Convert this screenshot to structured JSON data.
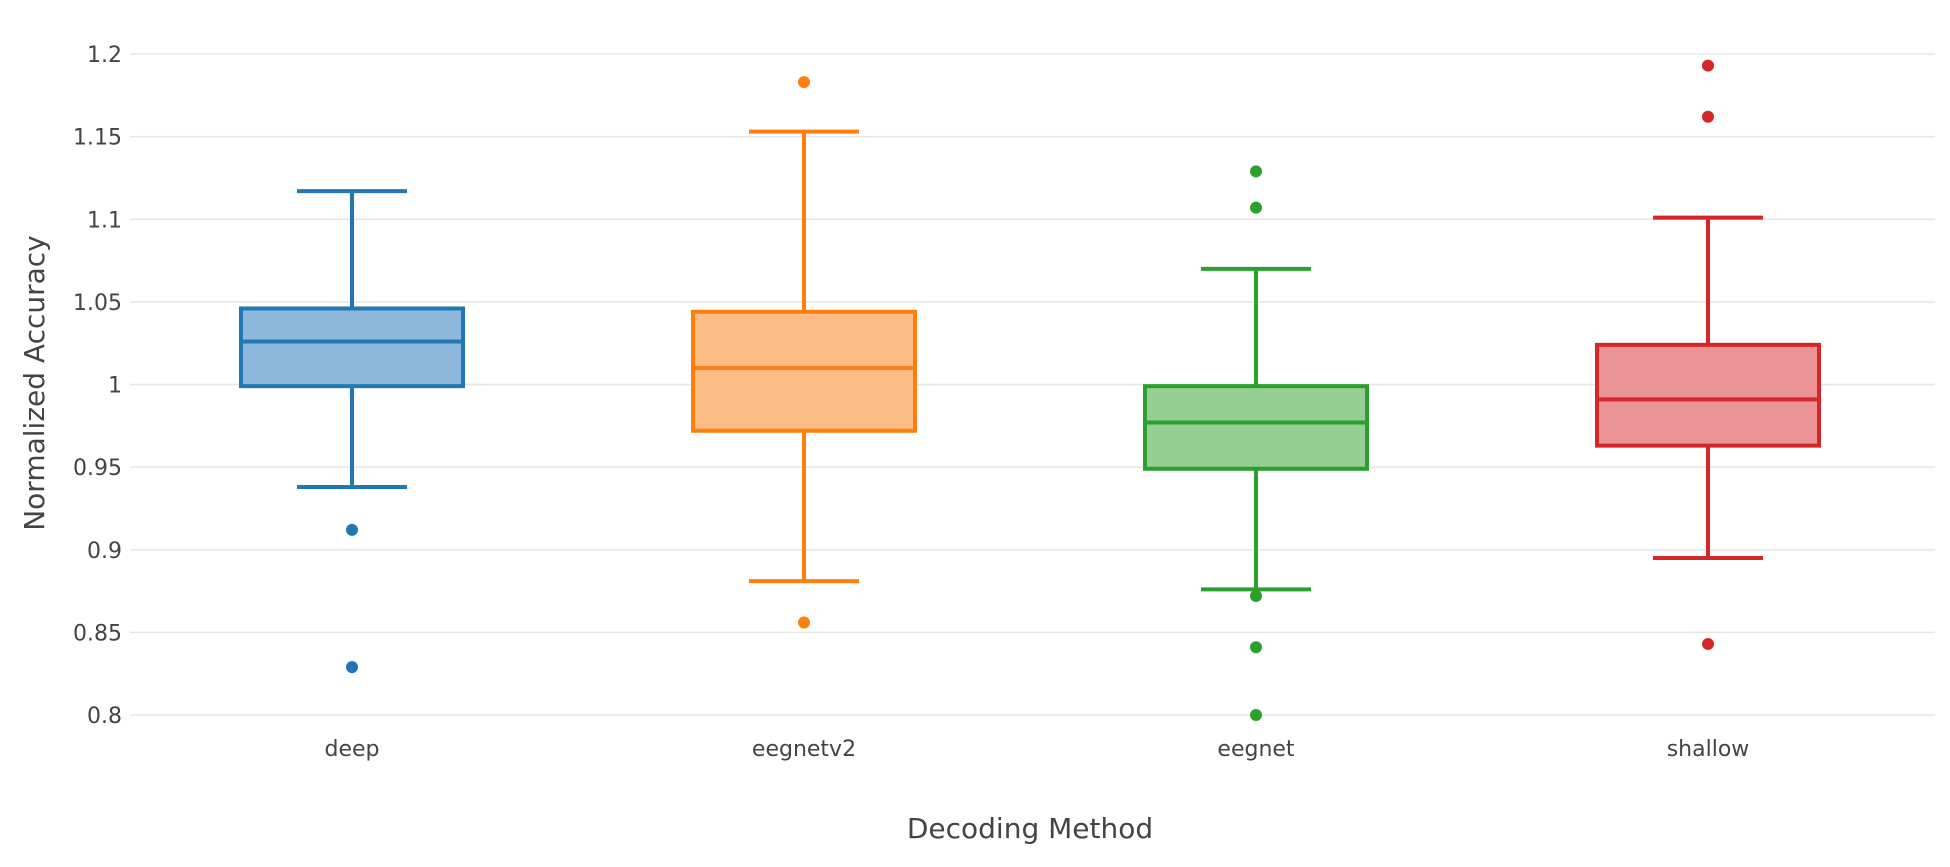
{
  "chart_data": {
    "type": "box",
    "title": "",
    "xlabel": "Decoding Method",
    "ylabel": "Normalized Accuracy",
    "ylim": [
      0.79,
      1.21
    ],
    "yticks": [
      0.8,
      0.85,
      0.9,
      0.95,
      1,
      1.05,
      1.1,
      1.15,
      1.2
    ],
    "ytick_labels": [
      "0.8",
      "0.85",
      "0.9",
      "0.95",
      "1",
      "1.05",
      "1.1",
      "1.15",
      "1.2"
    ],
    "grid": true,
    "legend": "none",
    "categories": [
      "deep",
      "eegnetv2",
      "eegnet",
      "shallow"
    ],
    "series": [
      {
        "category": "deep",
        "color": "#1f77b4",
        "fill": "#8fb9dc",
        "whisker_low": 0.938,
        "q1": 0.999,
        "median": 1.026,
        "q3": 1.046,
        "whisker_high": 1.117,
        "outliers": [
          0.912,
          0.829
        ]
      },
      {
        "category": "eegnetv2",
        "color": "#ff7f0e",
        "fill": "#fbbd85",
        "whisker_low": 0.881,
        "q1": 0.972,
        "median": 1.01,
        "q3": 1.044,
        "whisker_high": 1.153,
        "outliers": [
          1.183,
          0.856
        ]
      },
      {
        "category": "eegnet",
        "color": "#2ca02c",
        "fill": "#95cf93",
        "whisker_low": 0.876,
        "q1": 0.949,
        "median": 0.977,
        "q3": 0.999,
        "whisker_high": 1.07,
        "outliers": [
          1.129,
          1.107,
          0.872,
          0.841,
          0.8
        ]
      },
      {
        "category": "shallow",
        "color": "#d62728",
        "fill": "#ea9294",
        "whisker_low": 0.895,
        "q1": 0.963,
        "median": 0.991,
        "q3": 1.024,
        "whisker_high": 1.101,
        "outliers": [
          1.193,
          1.162,
          0.843
        ]
      }
    ]
  }
}
